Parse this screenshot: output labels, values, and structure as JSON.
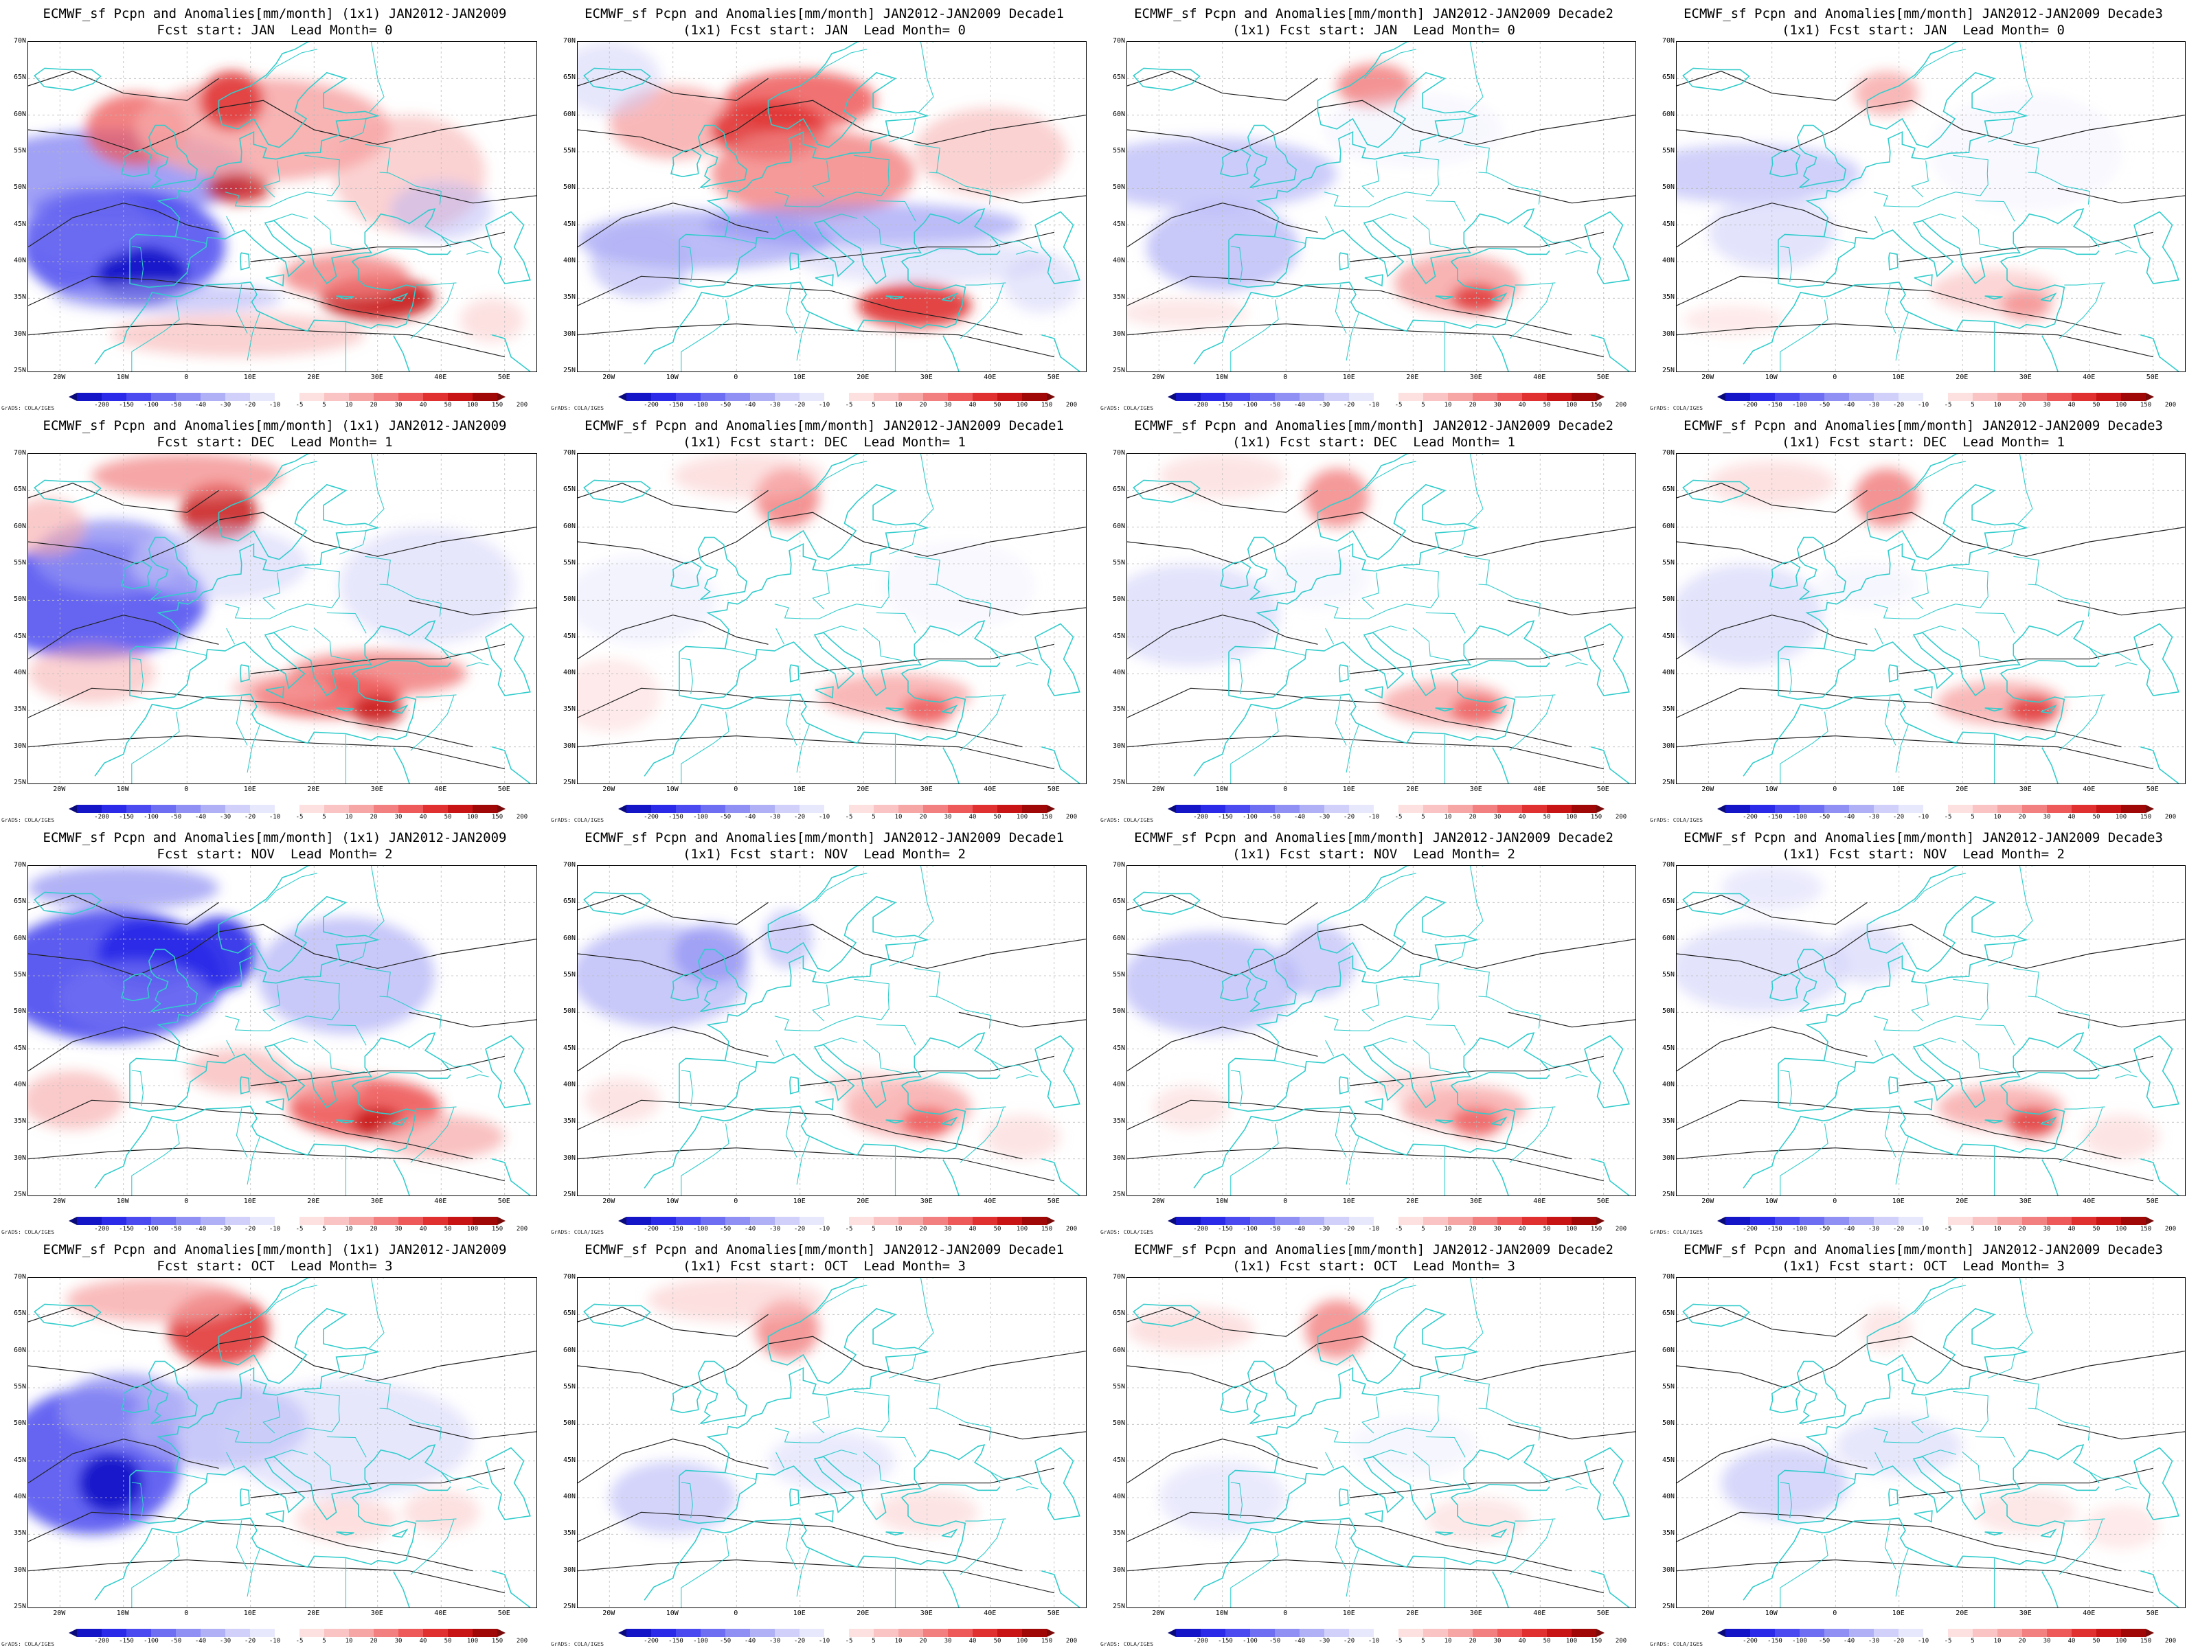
{
  "figure": {
    "rows": [
      {
        "lead": "0",
        "start": "JAN"
      },
      {
        "lead": "1",
        "start": "DEC"
      },
      {
        "lead": "2",
        "start": "NOV"
      },
      {
        "lead": "3",
        "start": "OCT"
      }
    ],
    "columns": [
      "",
      "Decade1",
      "Decade2",
      "Decade3"
    ],
    "panels": [
      {
        "title1": "ECMWF_sf Pcpn and Anomalies[mm/month] (1x1) JAN2012-JAN2009",
        "title2": "Fcst start: JAN  Lead Month= 0"
      },
      {
        "title1": "ECMWF_sf Pcpn and Anomalies[mm/month] JAN2012-JAN2009 Decade1",
        "title2": "(1x1) Fcst start: JAN  Lead Month= 0"
      },
      {
        "title1": "ECMWF_sf Pcpn and Anomalies[mm/month] JAN2012-JAN2009 Decade2",
        "title2": "(1x1) Fcst start: JAN  Lead Month= 0"
      },
      {
        "title1": "ECMWF_sf Pcpn and Anomalies[mm/month] JAN2012-JAN2009 Decade3",
        "title2": "(1x1) Fcst start: JAN  Lead Month= 0"
      },
      {
        "title1": "ECMWF_sf Pcpn and Anomalies[mm/month] (1x1) JAN2012-JAN2009",
        "title2": "Fcst start: DEC  Lead Month= 1"
      },
      {
        "title1": "ECMWF_sf Pcpn and Anomalies[mm/month] JAN2012-JAN2009 Decade1",
        "title2": "(1x1) Fcst start: DEC  Lead Month= 1"
      },
      {
        "title1": "ECMWF_sf Pcpn and Anomalies[mm/month] JAN2012-JAN2009 Decade2",
        "title2": "(1x1) Fcst start: DEC  Lead Month= 1"
      },
      {
        "title1": "ECMWF_sf Pcpn and Anomalies[mm/month] JAN2012-JAN2009 Decade3",
        "title2": "(1x1) Fcst start: DEC  Lead Month= 1"
      },
      {
        "title1": "ECMWF_sf Pcpn and Anomalies[mm/month] (1x1) JAN2012-JAN2009",
        "title2": "Fcst start: NOV  Lead Month= 2"
      },
      {
        "title1": "ECMWF_sf Pcpn and Anomalies[mm/month] JAN2012-JAN2009 Decade1",
        "title2": "(1x1) Fcst start: NOV  Lead Month= 2"
      },
      {
        "title1": "ECMWF_sf Pcpn and Anomalies[mm/month] JAN2012-JAN2009 Decade2",
        "title2": "(1x1) Fcst start: NOV  Lead Month= 2"
      },
      {
        "title1": "ECMWF_sf Pcpn and Anomalies[mm/month] JAN2012-JAN2009 Decade3",
        "title2": "(1x1) Fcst start: NOV  Lead Month= 2"
      },
      {
        "title1": "ECMWF_sf Pcpn and Anomalies[mm/month] (1x1) JAN2012-JAN2009",
        "title2": "Fcst start: OCT  Lead Month= 3"
      },
      {
        "title1": "ECMWF_sf Pcpn and Anomalies[mm/month] JAN2012-JAN2009 Decade1",
        "title2": "(1x1) Fcst start: OCT  Lead Month= 3"
      },
      {
        "title1": "ECMWF_sf Pcpn and Anomalies[mm/month] JAN2012-JAN2009 Decade2",
        "title2": "(1x1) Fcst start: OCT  Lead Month= 3"
      },
      {
        "title1": "ECMWF_sf Pcpn and Anomalies[mm/month] JAN2012-JAN2009 Decade3",
        "title2": "(1x1) Fcst start: OCT  Lead Month= 3"
      }
    ],
    "lat_labels": [
      "70N",
      "65N",
      "60N",
      "55N",
      "50N",
      "45N",
      "40N",
      "35N",
      "30N",
      "25N"
    ],
    "lon_labels": [
      "20W",
      "10W",
      "0",
      "10E",
      "20E",
      "30E",
      "40E",
      "50E"
    ],
    "colorbar_ticks": [
      "-200",
      "-150",
      "-100",
      "-50",
      "-40",
      "-30",
      "-20",
      "-10",
      "-5",
      "5",
      "10",
      "20",
      "30",
      "40",
      "50",
      "100",
      "150",
      "200"
    ],
    "colorbar_colors": [
      "#0a0a7a",
      "#1515c8",
      "#2a2ae8",
      "#4a4af0",
      "#6e6ef2",
      "#9090f4",
      "#b0b0f7",
      "#d0d0fa",
      "#e8e8fd",
      "#ffffff",
      "#fde0e0",
      "#fbc4c4",
      "#f7a6a6",
      "#f28080",
      "#ee5a5a",
      "#e03030",
      "#c81414",
      "#a00808",
      "#7a0a0a"
    ],
    "credit": "GrADS: COLA/IGES",
    "land_line_color": "#33cccc"
  }
}
